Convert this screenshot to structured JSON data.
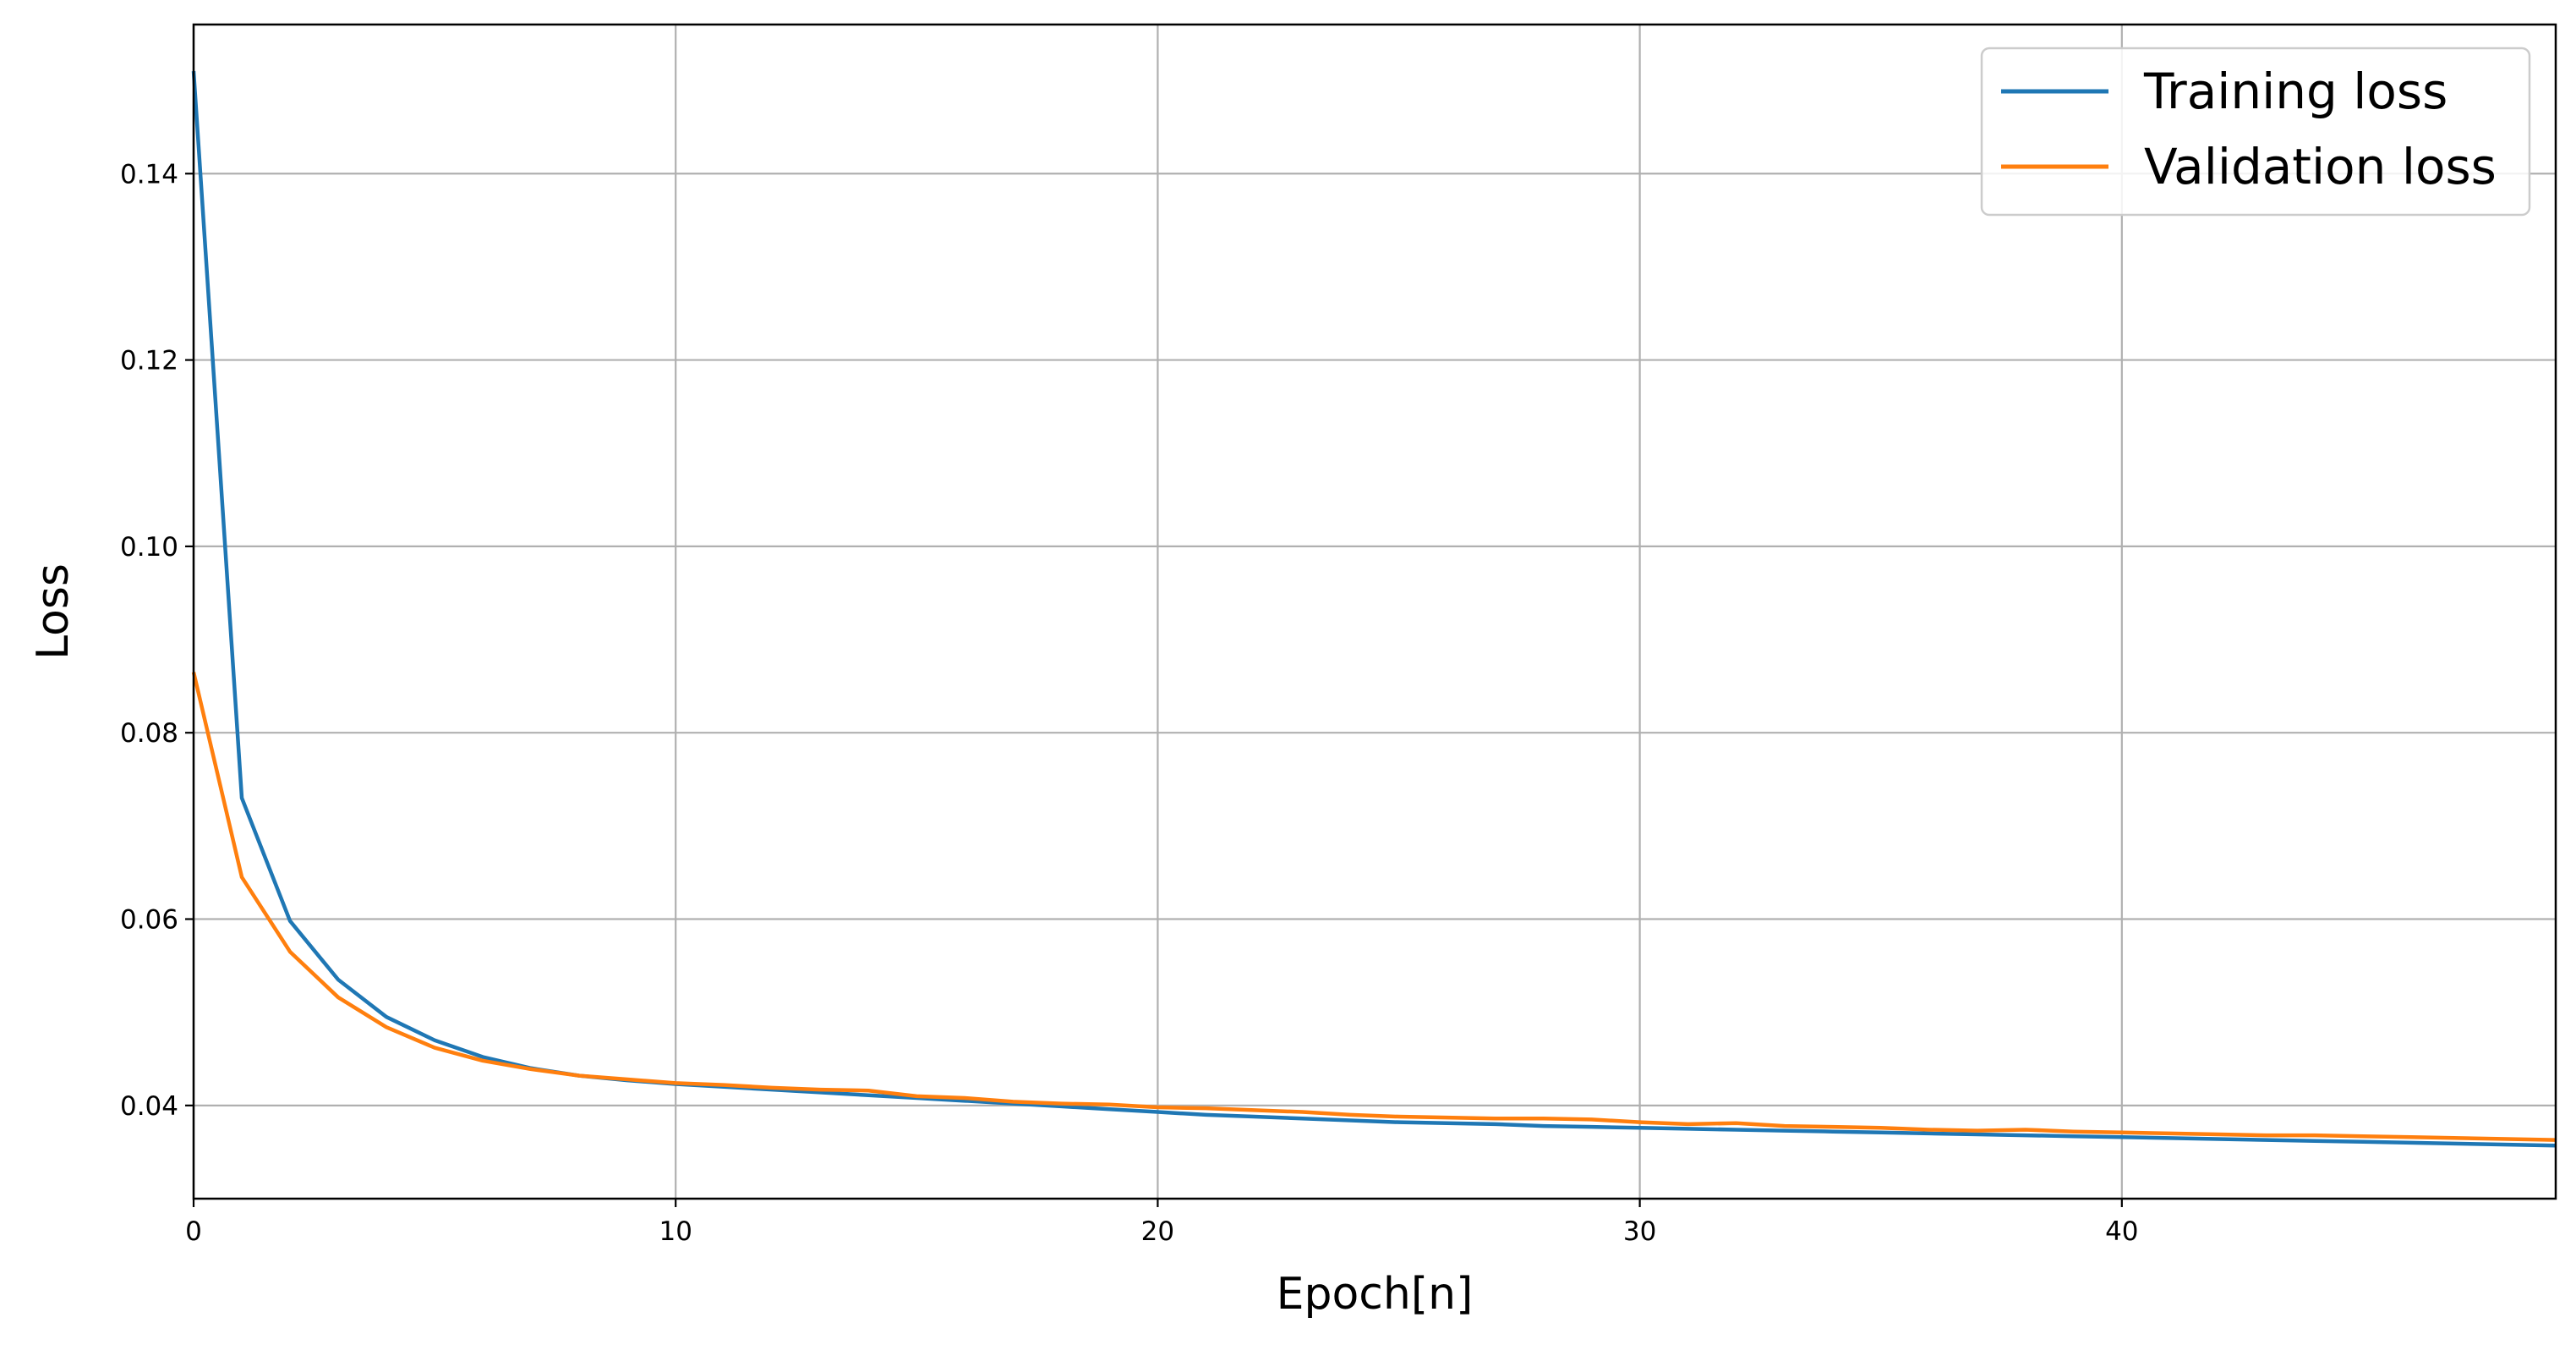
{
  "chart_data": {
    "type": "line",
    "title": "",
    "xlabel": "Epoch[n]",
    "ylabel": "Loss",
    "xlim": [
      0,
      49
    ],
    "ylim": [
      0.03,
      0.156
    ],
    "xticks": [
      0,
      10,
      20,
      30,
      40
    ],
    "xtick_labels": [
      "0",
      "10",
      "20",
      "30",
      "40"
    ],
    "yticks": [
      0.04,
      0.06,
      0.08,
      0.1,
      0.12,
      0.14
    ],
    "ytick_labels": [
      "0.04",
      "0.06",
      "0.08",
      "0.10",
      "0.12",
      "0.14"
    ],
    "grid": true,
    "legend_position": "top-right",
    "series": [
      {
        "name": "Training loss",
        "color": "#1f77b4",
        "x": [
          0,
          1,
          2,
          3,
          4,
          5,
          6,
          7,
          8,
          9,
          10,
          11,
          12,
          13,
          14,
          15,
          16,
          17,
          18,
          19,
          20,
          21,
          22,
          23,
          24,
          25,
          26,
          27,
          28,
          29,
          30,
          31,
          32,
          33,
          34,
          35,
          36,
          37,
          38,
          39,
          40,
          41,
          42,
          43,
          44,
          45,
          46,
          47,
          48,
          49
        ],
        "values": [
          0.151,
          0.073,
          0.0598,
          0.0535,
          0.0495,
          0.047,
          0.0452,
          0.044,
          0.0432,
          0.0427,
          0.0423,
          0.042,
          0.0417,
          0.0414,
          0.0411,
          0.0408,
          0.0405,
          0.0402,
          0.0399,
          0.0396,
          0.0393,
          0.039,
          0.0388,
          0.0386,
          0.0384,
          0.0382,
          0.0381,
          0.038,
          0.0378,
          0.0377,
          0.0376,
          0.0375,
          0.0374,
          0.0373,
          0.0372,
          0.0371,
          0.037,
          0.0369,
          0.0368,
          0.0367,
          0.0366,
          0.0365,
          0.0364,
          0.0363,
          0.0362,
          0.0361,
          0.036,
          0.0359,
          0.0358,
          0.0357
        ]
      },
      {
        "name": "Validation loss",
        "color": "#ff7f0e",
        "x": [
          0,
          1,
          2,
          3,
          4,
          5,
          6,
          7,
          8,
          9,
          10,
          11,
          12,
          13,
          14,
          15,
          16,
          17,
          18,
          19,
          20,
          21,
          22,
          23,
          24,
          25,
          26,
          27,
          28,
          29,
          30,
          31,
          32,
          33,
          34,
          35,
          36,
          37,
          38,
          39,
          40,
          41,
          42,
          43,
          44,
          45,
          46,
          47,
          48,
          49
        ],
        "values": [
          0.0865,
          0.0645,
          0.0565,
          0.0516,
          0.0484,
          0.0462,
          0.0448,
          0.0439,
          0.0432,
          0.0428,
          0.0424,
          0.0422,
          0.0419,
          0.0417,
          0.0416,
          0.041,
          0.0408,
          0.0404,
          0.0402,
          0.0401,
          0.0398,
          0.0397,
          0.0395,
          0.0393,
          0.039,
          0.0388,
          0.0387,
          0.0386,
          0.0386,
          0.0385,
          0.0382,
          0.038,
          0.0381,
          0.0378,
          0.0377,
          0.0376,
          0.0374,
          0.0373,
          0.0374,
          0.0372,
          0.0371,
          0.037,
          0.0369,
          0.0368,
          0.0368,
          0.0367,
          0.0366,
          0.0365,
          0.0364,
          0.0363
        ]
      }
    ],
    "colors": {
      "grid": "#b0b0b0",
      "axes": "#000000",
      "legend_border": "#cccccc",
      "background": "#ffffff"
    }
  }
}
